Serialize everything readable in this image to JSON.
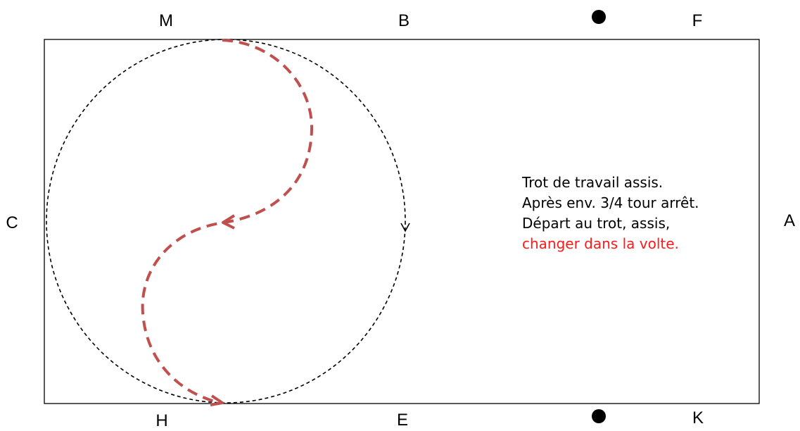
{
  "letters": {
    "m": "M",
    "b": "B",
    "f": "F",
    "c": "C",
    "a": "A",
    "h": "H",
    "e": "E",
    "k": "K"
  },
  "instructions": {
    "line1": "Trot de travail assis.",
    "line2": "Après env. 3/4 tour arrêt.",
    "line3": "Départ au trot, assis,",
    "line4": "changer dans la volte."
  },
  "colors": {
    "path": "#c0504d",
    "highlight": "#ff1a1a",
    "lines": "#000000"
  }
}
